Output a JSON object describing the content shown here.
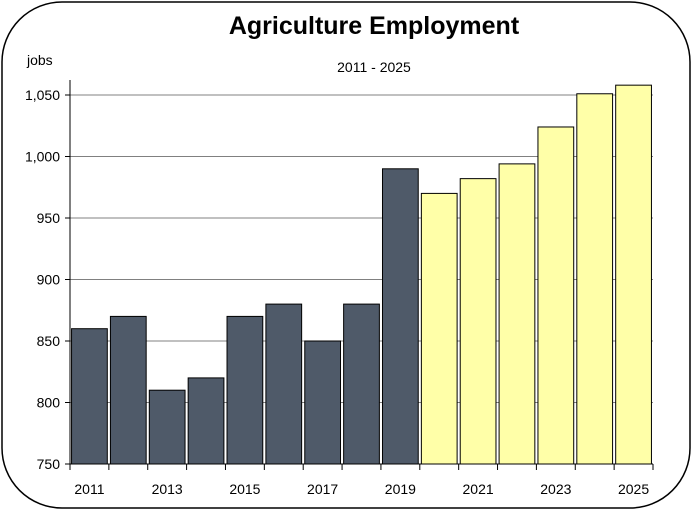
{
  "chart_data": {
    "type": "bar",
    "title": "Agriculture Employment",
    "subtitle": "2011 - 2025",
    "ylabel": "jobs",
    "xlabel": "",
    "ylim": [
      750,
      1075
    ],
    "yticks": [
      750,
      800,
      850,
      900,
      950,
      1000,
      1050
    ],
    "ytick_labels": [
      "750",
      "800",
      "850",
      "900",
      "950",
      "1,000",
      "1,050"
    ],
    "x_tick_labels": [
      "2011",
      "2013",
      "2015",
      "2017",
      "2019",
      "2021",
      "2023",
      "2025"
    ],
    "categories": [
      "2011",
      "2012",
      "2013",
      "2014",
      "2015",
      "2016",
      "2017",
      "2018",
      "2019",
      "2020",
      "2021",
      "2022",
      "2023",
      "2024",
      "2025"
    ],
    "values": [
      860,
      870,
      810,
      820,
      870,
      880,
      850,
      880,
      990,
      970,
      982,
      994,
      1024,
      1051,
      1058
    ],
    "bar_colors": [
      "#4f5a69",
      "#4f5a69",
      "#4f5a69",
      "#4f5a69",
      "#4f5a69",
      "#4f5a69",
      "#4f5a69",
      "#4f5a69",
      "#4f5a69",
      "#ffffa8",
      "#ffffa8",
      "#ffffa8",
      "#ffffa8",
      "#ffffa8",
      "#ffffa8"
    ],
    "grid": true,
    "legend": "none"
  }
}
